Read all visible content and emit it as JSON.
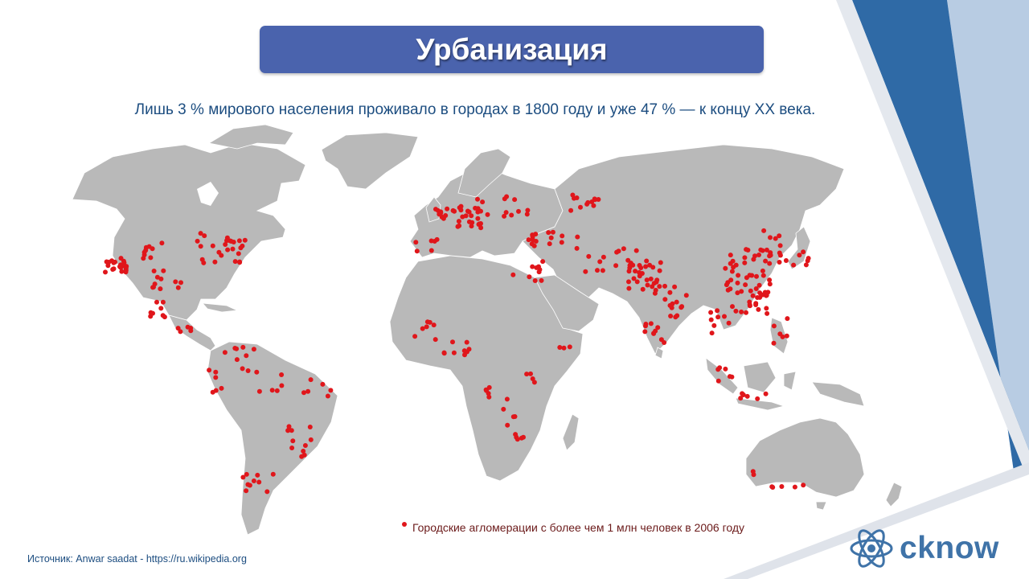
{
  "title": "Урбанизация",
  "subtitle": "Лишь 3 % мирового населения проживало в городах в 1800 году и уже 47 % — к концу XX века.",
  "legend": {
    "label": "Городские агломерации с более чем 1 млн человек в 2006 году",
    "color": "#e0161b"
  },
  "source": "Источник: Anwar saadat - https://ru.wikipedia.org",
  "brand": {
    "name": "cknow",
    "icon": "atom-icon",
    "color": "#3f73a8"
  },
  "colors": {
    "land": "#b9b9b9",
    "ocean": "#ffffff",
    "city_dot": "#e0161b",
    "title_bg": "#4a63ad",
    "accent_stripe": "#2f6aa6",
    "light_stripe": "#b8cce3"
  }
}
